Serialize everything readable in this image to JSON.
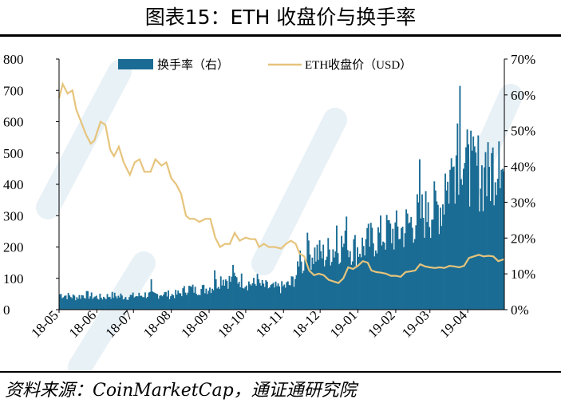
{
  "title": "图表15：ETH 收盘价与换手率",
  "source": "资料来源：CoinMarketCap，通证通研究院",
  "chart_data": {
    "type": "bar+line",
    "title": "图表15：ETH 收盘价与换手率",
    "x_tick_labels": [
      "18-05",
      "18-06",
      "18-07",
      "18-08",
      "18-09",
      "18-10",
      "18-11",
      "18-12",
      "19-01",
      "19-02",
      "19-03",
      "19-04"
    ],
    "x_range": [
      "2018-05-01",
      "2019-05-01"
    ],
    "left_axis": {
      "range": [
        0,
        800
      ],
      "ticks": [
        "0",
        "100",
        "200",
        "300",
        "400",
        "500",
        "600",
        "700",
        "800"
      ]
    },
    "right_axis": {
      "range": [
        0,
        0.7
      ],
      "ticks": [
        "0%",
        "10%",
        "20%",
        "30%",
        "40%",
        "50%",
        "60%",
        "70%"
      ]
    },
    "legend": {
      "placement": "top"
    },
    "series": [
      {
        "name": "换手率（右）",
        "kind": "bar",
        "axis": "right",
        "color": "#1a6c94",
        "values": [
          [
            "2018-05-01",
            0.043
          ],
          [
            "2018-05-08",
            0.038
          ],
          [
            "2018-05-15",
            0.035
          ],
          [
            "2018-05-22",
            0.042
          ],
          [
            "2018-05-29",
            0.036
          ],
          [
            "2018-06-05",
            0.034
          ],
          [
            "2018-06-12",
            0.04
          ],
          [
            "2018-06-19",
            0.036
          ],
          [
            "2018-06-26",
            0.037
          ],
          [
            "2018-07-03",
            0.038
          ],
          [
            "2018-07-10",
            0.042
          ],
          [
            "2018-07-17",
            0.04
          ],
          [
            "2018-07-24",
            0.045
          ],
          [
            "2018-07-31",
            0.041
          ],
          [
            "2018-08-07",
            0.044
          ],
          [
            "2018-08-14",
            0.06
          ],
          [
            "2018-08-21",
            0.055
          ],
          [
            "2018-08-28",
            0.058
          ],
          [
            "2018-09-04",
            0.065
          ],
          [
            "2018-09-11",
            0.09
          ],
          [
            "2018-09-18",
            0.08
          ],
          [
            "2018-09-25",
            0.085
          ],
          [
            "2018-10-02",
            0.075
          ],
          [
            "2018-10-09",
            0.07
          ],
          [
            "2018-10-16",
            0.065
          ],
          [
            "2018-10-23",
            0.06
          ],
          [
            "2018-10-30",
            0.062
          ],
          [
            "2018-11-06",
            0.07
          ],
          [
            "2018-11-13",
            0.11
          ],
          [
            "2018-11-20",
            0.15
          ],
          [
            "2018-11-27",
            0.16
          ],
          [
            "2018-12-04",
            0.15
          ],
          [
            "2018-12-11",
            0.17
          ],
          [
            "2018-12-18",
            0.18
          ],
          [
            "2018-12-25",
            0.175
          ],
          [
            "2019-01-01",
            0.17
          ],
          [
            "2019-01-08",
            0.185
          ],
          [
            "2019-01-15",
            0.2
          ],
          [
            "2019-01-22",
            0.21
          ],
          [
            "2019-01-29",
            0.215
          ],
          [
            "2019-02-05",
            0.22
          ],
          [
            "2019-02-12",
            0.24
          ],
          [
            "2019-02-19",
            0.26
          ],
          [
            "2019-02-26",
            0.27
          ],
          [
            "2019-03-05",
            0.28
          ],
          [
            "2019-03-12",
            0.3
          ],
          [
            "2019-03-19",
            0.4
          ],
          [
            "2019-03-26",
            0.48
          ],
          [
            "2019-04-02",
            0.36
          ],
          [
            "2019-04-09",
            0.39
          ],
          [
            "2019-04-16",
            0.36
          ],
          [
            "2019-04-23",
            0.42
          ],
          [
            "2019-04-30",
            0.38
          ]
        ],
        "peaks": [
          [
            "2018-06-20",
            0.045
          ],
          [
            "2018-07-15",
            0.085
          ],
          [
            "2018-08-20",
            0.064
          ],
          [
            "2018-09-05",
            0.11
          ],
          [
            "2018-09-20",
            0.125
          ],
          [
            "2018-10-10",
            0.1
          ],
          [
            "2018-10-28",
            0.065
          ],
          [
            "2018-11-14",
            0.165
          ],
          [
            "2018-11-20",
            0.215
          ],
          [
            "2018-12-07",
            0.2
          ],
          [
            "2018-12-14",
            0.235
          ],
          [
            "2018-12-22",
            0.26
          ],
          [
            "2019-01-09",
            0.24
          ],
          [
            "2019-01-25",
            0.25
          ],
          [
            "2019-02-09",
            0.28
          ],
          [
            "2019-02-20",
            0.42
          ],
          [
            "2019-02-27",
            0.3
          ],
          [
            "2019-03-13",
            0.38
          ],
          [
            "2019-03-20",
            0.4
          ],
          [
            "2019-03-23",
            0.52
          ],
          [
            "2019-03-25",
            0.625
          ],
          [
            "2019-03-29",
            0.41
          ],
          [
            "2019-04-03",
            0.5
          ],
          [
            "2019-04-15",
            0.44
          ],
          [
            "2019-04-26",
            0.47
          ]
        ]
      },
      {
        "name": "ETH收盘价（USD）",
        "kind": "line",
        "axis": "left",
        "color": "#e6c47c",
        "values": [
          [
            "2018-05-01",
            675
          ],
          [
            "2018-05-04",
            720
          ],
          [
            "2018-05-08",
            690
          ],
          [
            "2018-05-12",
            700
          ],
          [
            "2018-05-15",
            640
          ],
          [
            "2018-05-19",
            600
          ],
          [
            "2018-05-23",
            560
          ],
          [
            "2018-05-27",
            530
          ],
          [
            "2018-05-30",
            540
          ],
          [
            "2018-06-04",
            600
          ],
          [
            "2018-06-08",
            590
          ],
          [
            "2018-06-12",
            510
          ],
          [
            "2018-06-15",
            490
          ],
          [
            "2018-06-19",
            520
          ],
          [
            "2018-06-23",
            470
          ],
          [
            "2018-06-28",
            430
          ],
          [
            "2018-07-02",
            470
          ],
          [
            "2018-07-06",
            480
          ],
          [
            "2018-07-10",
            440
          ],
          [
            "2018-07-15",
            440
          ],
          [
            "2018-07-19",
            480
          ],
          [
            "2018-07-24",
            460
          ],
          [
            "2018-07-28",
            470
          ],
          [
            "2018-08-01",
            420
          ],
          [
            "2018-08-05",
            400
          ],
          [
            "2018-08-09",
            370
          ],
          [
            "2018-08-13",
            300
          ],
          [
            "2018-08-16",
            290
          ],
          [
            "2018-08-20",
            290
          ],
          [
            "2018-08-24",
            280
          ],
          [
            "2018-08-29",
            290
          ],
          [
            "2018-09-02",
            290
          ],
          [
            "2018-09-06",
            230
          ],
          [
            "2018-09-10",
            200
          ],
          [
            "2018-09-14",
            210
          ],
          [
            "2018-09-18",
            210
          ],
          [
            "2018-09-22",
            245
          ],
          [
            "2018-09-26",
            220
          ],
          [
            "2018-10-01",
            230
          ],
          [
            "2018-10-05",
            225
          ],
          [
            "2018-10-09",
            225
          ],
          [
            "2018-10-12",
            200
          ],
          [
            "2018-10-16",
            210
          ],
          [
            "2018-10-20",
            200
          ],
          [
            "2018-10-25",
            200
          ],
          [
            "2018-10-30",
            195
          ],
          [
            "2018-11-03",
            210
          ],
          [
            "2018-11-07",
            220
          ],
          [
            "2018-11-11",
            210
          ],
          [
            "2018-11-14",
            180
          ],
          [
            "2018-11-18",
            170
          ],
          [
            "2018-11-22",
            125
          ],
          [
            "2018-11-26",
            110
          ],
          [
            "2018-11-30",
            115
          ],
          [
            "2018-12-04",
            110
          ],
          [
            "2018-12-08",
            95
          ],
          [
            "2018-12-12",
            90
          ],
          [
            "2018-12-16",
            85
          ],
          [
            "2018-12-20",
            100
          ],
          [
            "2018-12-24",
            135
          ],
          [
            "2018-12-28",
            130
          ],
          [
            "2019-01-01",
            140
          ],
          [
            "2019-01-05",
            155
          ],
          [
            "2019-01-09",
            150
          ],
          [
            "2019-01-12",
            125
          ],
          [
            "2019-01-16",
            120
          ],
          [
            "2019-01-20",
            118
          ],
          [
            "2019-01-24",
            115
          ],
          [
            "2019-01-28",
            108
          ],
          [
            "2019-02-01",
            108
          ],
          [
            "2019-02-05",
            105
          ],
          [
            "2019-02-09",
            120
          ],
          [
            "2019-02-13",
            122
          ],
          [
            "2019-02-17",
            125
          ],
          [
            "2019-02-21",
            145
          ],
          [
            "2019-02-25",
            138
          ],
          [
            "2019-03-01",
            135
          ],
          [
            "2019-03-05",
            133
          ],
          [
            "2019-03-09",
            135
          ],
          [
            "2019-03-13",
            133
          ],
          [
            "2019-03-17",
            140
          ],
          [
            "2019-03-21",
            138
          ],
          [
            "2019-03-25",
            135
          ],
          [
            "2019-03-29",
            140
          ],
          [
            "2019-04-02",
            165
          ],
          [
            "2019-04-06",
            170
          ],
          [
            "2019-04-10",
            175
          ],
          [
            "2019-04-14",
            170
          ],
          [
            "2019-04-18",
            172
          ],
          [
            "2019-04-22",
            170
          ],
          [
            "2019-04-26",
            155
          ],
          [
            "2019-04-30",
            160
          ],
          [
            "2019-05-01",
            160
          ]
        ]
      }
    ]
  }
}
